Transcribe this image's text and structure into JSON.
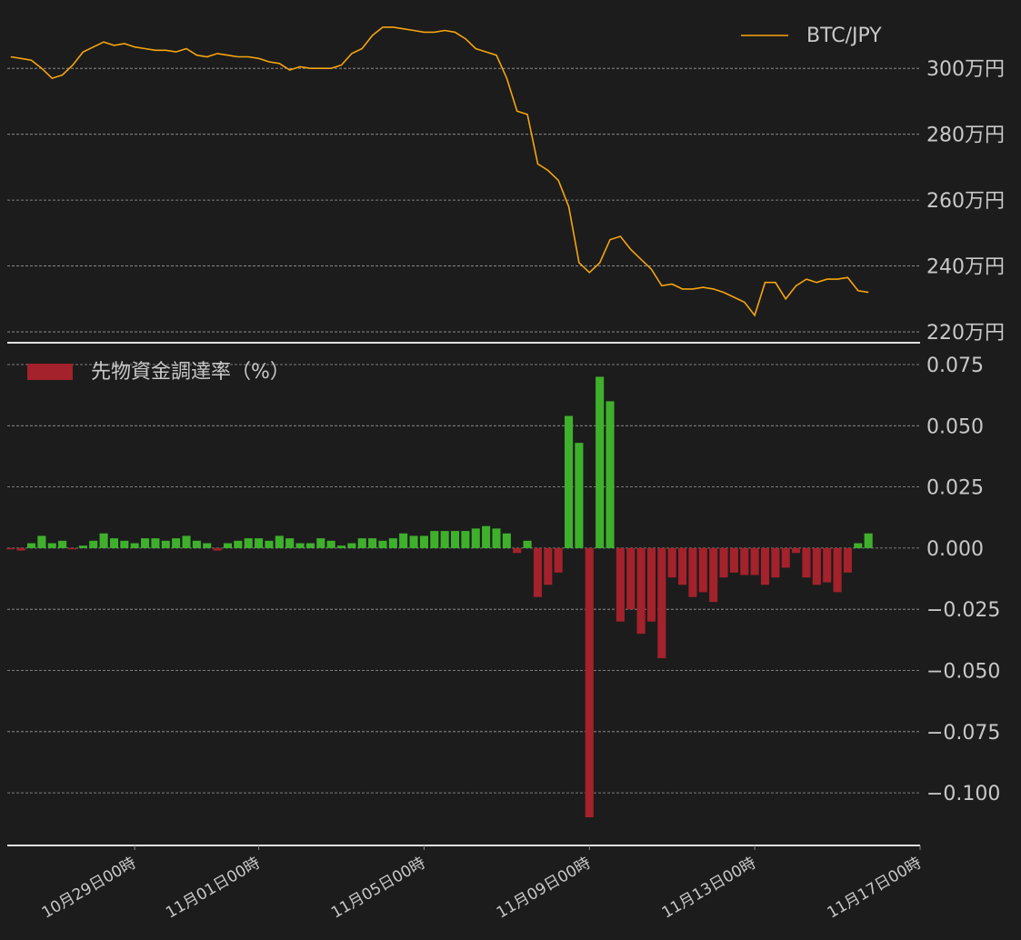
{
  "chart_data": [
    {
      "type": "line",
      "x": [
        "10月26日00時",
        "10月26日06時",
        "10月26日12時",
        "10月26日18時",
        "10月27日00時",
        "10月27日06時",
        "10月27日12時",
        "10月27日18時",
        "10月28日00時",
        "10月28日06時",
        "10月28日12時",
        "10月28日18時",
        "10月29日00時",
        "10月29日06時",
        "10月29日12時",
        "10月29日18時",
        "10月30日00時",
        "10月30日06時",
        "10月30日12時",
        "10月30日18時",
        "10月31日00時",
        "10月31日06時",
        "10月31日12時",
        "10月31日18時",
        "11月01日00時",
        "11月01日06時",
        "11月01日12時",
        "11月01日18時",
        "11月02日00時",
        "11月02日06時",
        "11月02日12時",
        "11月02日18時",
        "11月03日00時",
        "11月03日06時",
        "11月03日12時",
        "11月03日18時",
        "11月04日00時",
        "11月04日06時",
        "11月04日12時",
        "11月04日18時",
        "11月05日00時",
        "11月05日06時",
        "11月05日12時",
        "11月05日18時",
        "11月06日00時",
        "11月06日06時",
        "11月06日12時",
        "11月06日18時",
        "11月07日00時",
        "11月07日06時",
        "11月07日12時",
        "11月07日18時",
        "11月08日00時",
        "11月08日06時",
        "11月08日12時",
        "11月08日18時",
        "11月09日00時",
        "11月09日06時",
        "11月09日12時",
        "11月09日18時",
        "11月10日00時",
        "11月10日06時",
        "11月10日12時",
        "11月10日18時",
        "11月11日00時",
        "11月11日06時",
        "11月11日12時",
        "11月11日18時",
        "11月12日00時",
        "11月12日06時",
        "11月12日12時",
        "11月12日18時",
        "11月13日00時",
        "11月13日06時",
        "11月13日12時",
        "11月13日18時",
        "11月14日00時",
        "11月14日06時",
        "11月14日12時",
        "11月14日18時",
        "11月15日00時",
        "11月15日06時",
        "11月15日12時",
        "11月15日18時"
      ],
      "series": [
        {
          "name": "BTC/JPY",
          "color": "#f5a410",
          "values": [
            3035000,
            3030000,
            3025000,
            3000000,
            2970000,
            2980000,
            3010000,
            3050000,
            3065000,
            3080000,
            3070000,
            3075000,
            3065000,
            3060000,
            3055000,
            3055000,
            3050000,
            3060000,
            3040000,
            3035000,
            3045000,
            3040000,
            3035000,
            3035000,
            3030000,
            3020000,
            3015000,
            2995000,
            3005000,
            3000000,
            3000000,
            3000000,
            3010000,
            3045000,
            3060000,
            3100000,
            3125000,
            3125000,
            3120000,
            3115000,
            3110000,
            3110000,
            3115000,
            3110000,
            3090000,
            3060000,
            3050000,
            3040000,
            2970000,
            2870000,
            2860000,
            2710000,
            2690000,
            2660000,
            2580000,
            2410000,
            2380000,
            2410000,
            2480000,
            2490000,
            2450000,
            2420000,
            2390000,
            2340000,
            2345000,
            2330000,
            2330000,
            2335000,
            2330000,
            2320000,
            2305000,
            2290000,
            2250000,
            2350000,
            2350000,
            2300000,
            2340000,
            2360000,
            2350000,
            2360000,
            2360000,
            2365000,
            2325000,
            2320000
          ]
        }
      ],
      "xlim": [
        "10月25日22時",
        "11月17日00時"
      ],
      "ylim": [
        2167000,
        3180000
      ],
      "yticks": [
        {
          "value": 3000000,
          "label": "300万円"
        },
        {
          "value": 2800000,
          "label": "280万円"
        },
        {
          "value": 2600000,
          "label": "260万円"
        },
        {
          "value": 2400000,
          "label": "240万円"
        },
        {
          "value": 2200000,
          "label": "220万円"
        }
      ],
      "grid": true,
      "legend": "upper right"
    },
    {
      "type": "bar",
      "x": [
        "10月26日00時",
        "10月26日06時",
        "10月26日12時",
        "10月26日18時",
        "10月27日00時",
        "10月27日06時",
        "10月27日12時",
        "10月27日18時",
        "10月28日00時",
        "10月28日06時",
        "10月28日12時",
        "10月28日18時",
        "10月29日00時",
        "10月29日06時",
        "10月29日12時",
        "10月29日18時",
        "10月30日00時",
        "10月30日06時",
        "10月30日12時",
        "10月30日18時",
        "10月31日00時",
        "10月31日06時",
        "10月31日12時",
        "10月31日18時",
        "11月01日00時",
        "11月01日06時",
        "11月01日12時",
        "11月01日18時",
        "11月02日00時",
        "11月02日06時",
        "11月02日12時",
        "11月02日18時",
        "11月03日00時",
        "11月03日06時",
        "11月03日12時",
        "11月03日18時",
        "11月04日00時",
        "11月04日06時",
        "11月04日12時",
        "11月04日18時",
        "11月05日00時",
        "11月05日06時",
        "11月05日12時",
        "11月05日18時",
        "11月06日00時",
        "11月06日06時",
        "11月06日12時",
        "11月06日18時",
        "11月07日00時",
        "11月07日06時",
        "11月07日12時",
        "11月07日18時",
        "11月08日00時",
        "11月08日06時",
        "11月08日12時",
        "11月08日18時",
        "11月09日00時",
        "11月09日06時",
        "11月09日12時",
        "11月09日18時",
        "11月10日00時",
        "11月10日06時",
        "11月10日12時",
        "11月10日18時",
        "11月11日00時",
        "11月11日06時",
        "11月11日12時",
        "11月11日18時",
        "11月12日00時",
        "11月12日06時",
        "11月12日12時",
        "11月12日18時",
        "11月13日00時",
        "11月13日06時",
        "11月13日12時",
        "11月13日18時",
        "11月14日00時",
        "11月14日06時",
        "11月14日12時",
        "11月14日18時",
        "11月15日00時",
        "11月15日06時",
        "11月15日12時",
        "11月15日18時"
      ],
      "series": [
        {
          "name": "先物資金調達率（%）",
          "color": "#a3222b",
          "positive_color": "#3fb02c",
          "values": [
            -0.0005,
            -0.001,
            0.002,
            0.005,
            0.002,
            0.003,
            -0.0005,
            0.001,
            0.003,
            0.006,
            0.004,
            0.003,
            0.002,
            0.004,
            0.004,
            0.003,
            0.004,
            0.005,
            0.003,
            0.002,
            -0.001,
            0.002,
            0.003,
            0.004,
            0.004,
            0.003,
            0.005,
            0.004,
            0.002,
            0.002,
            0.004,
            0.003,
            0.001,
            0.002,
            0.004,
            0.004,
            0.003,
            0.004,
            0.006,
            0.005,
            0.005,
            0.007,
            0.007,
            0.007,
            0.007,
            0.008,
            0.009,
            0.008,
            0.006,
            -0.002,
            0.003,
            -0.02,
            -0.015,
            -0.01,
            0.054,
            0.043,
            -0.11,
            0.07,
            0.06,
            -0.03,
            -0.025,
            -0.035,
            -0.03,
            -0.045,
            -0.012,
            -0.015,
            -0.02,
            -0.018,
            -0.022,
            -0.012,
            -0.01,
            -0.011,
            -0.011,
            -0.015,
            -0.012,
            -0.008,
            -0.002,
            -0.012,
            -0.015,
            -0.014,
            -0.018,
            -0.01,
            0.002,
            0.006
          ]
        }
      ],
      "xlim": [
        "10月25日22時",
        "11月17日00時"
      ],
      "xticks": [
        "10月29日00時",
        "11月01日00時",
        "11月05日00時",
        "11月09日00時",
        "11月13日00時",
        "11月17日00時"
      ],
      "ylim": [
        -0.1215,
        0.0828
      ],
      "yticks": [
        0.075,
        {
          "value": 0.05,
          "label": "0.050"
        },
        0.025,
        {
          "value": 0,
          "label": "0.000"
        },
        {
          "value": -0.025,
          "label": "−0.025"
        },
        {
          "value": -0.05,
          "label": "−0.050"
        },
        {
          "value": -0.075,
          "label": "−0.075"
        },
        {
          "value": -0.1,
          "label": "−0.100"
        }
      ],
      "grid": true,
      "legend": "upper left"
    }
  ]
}
